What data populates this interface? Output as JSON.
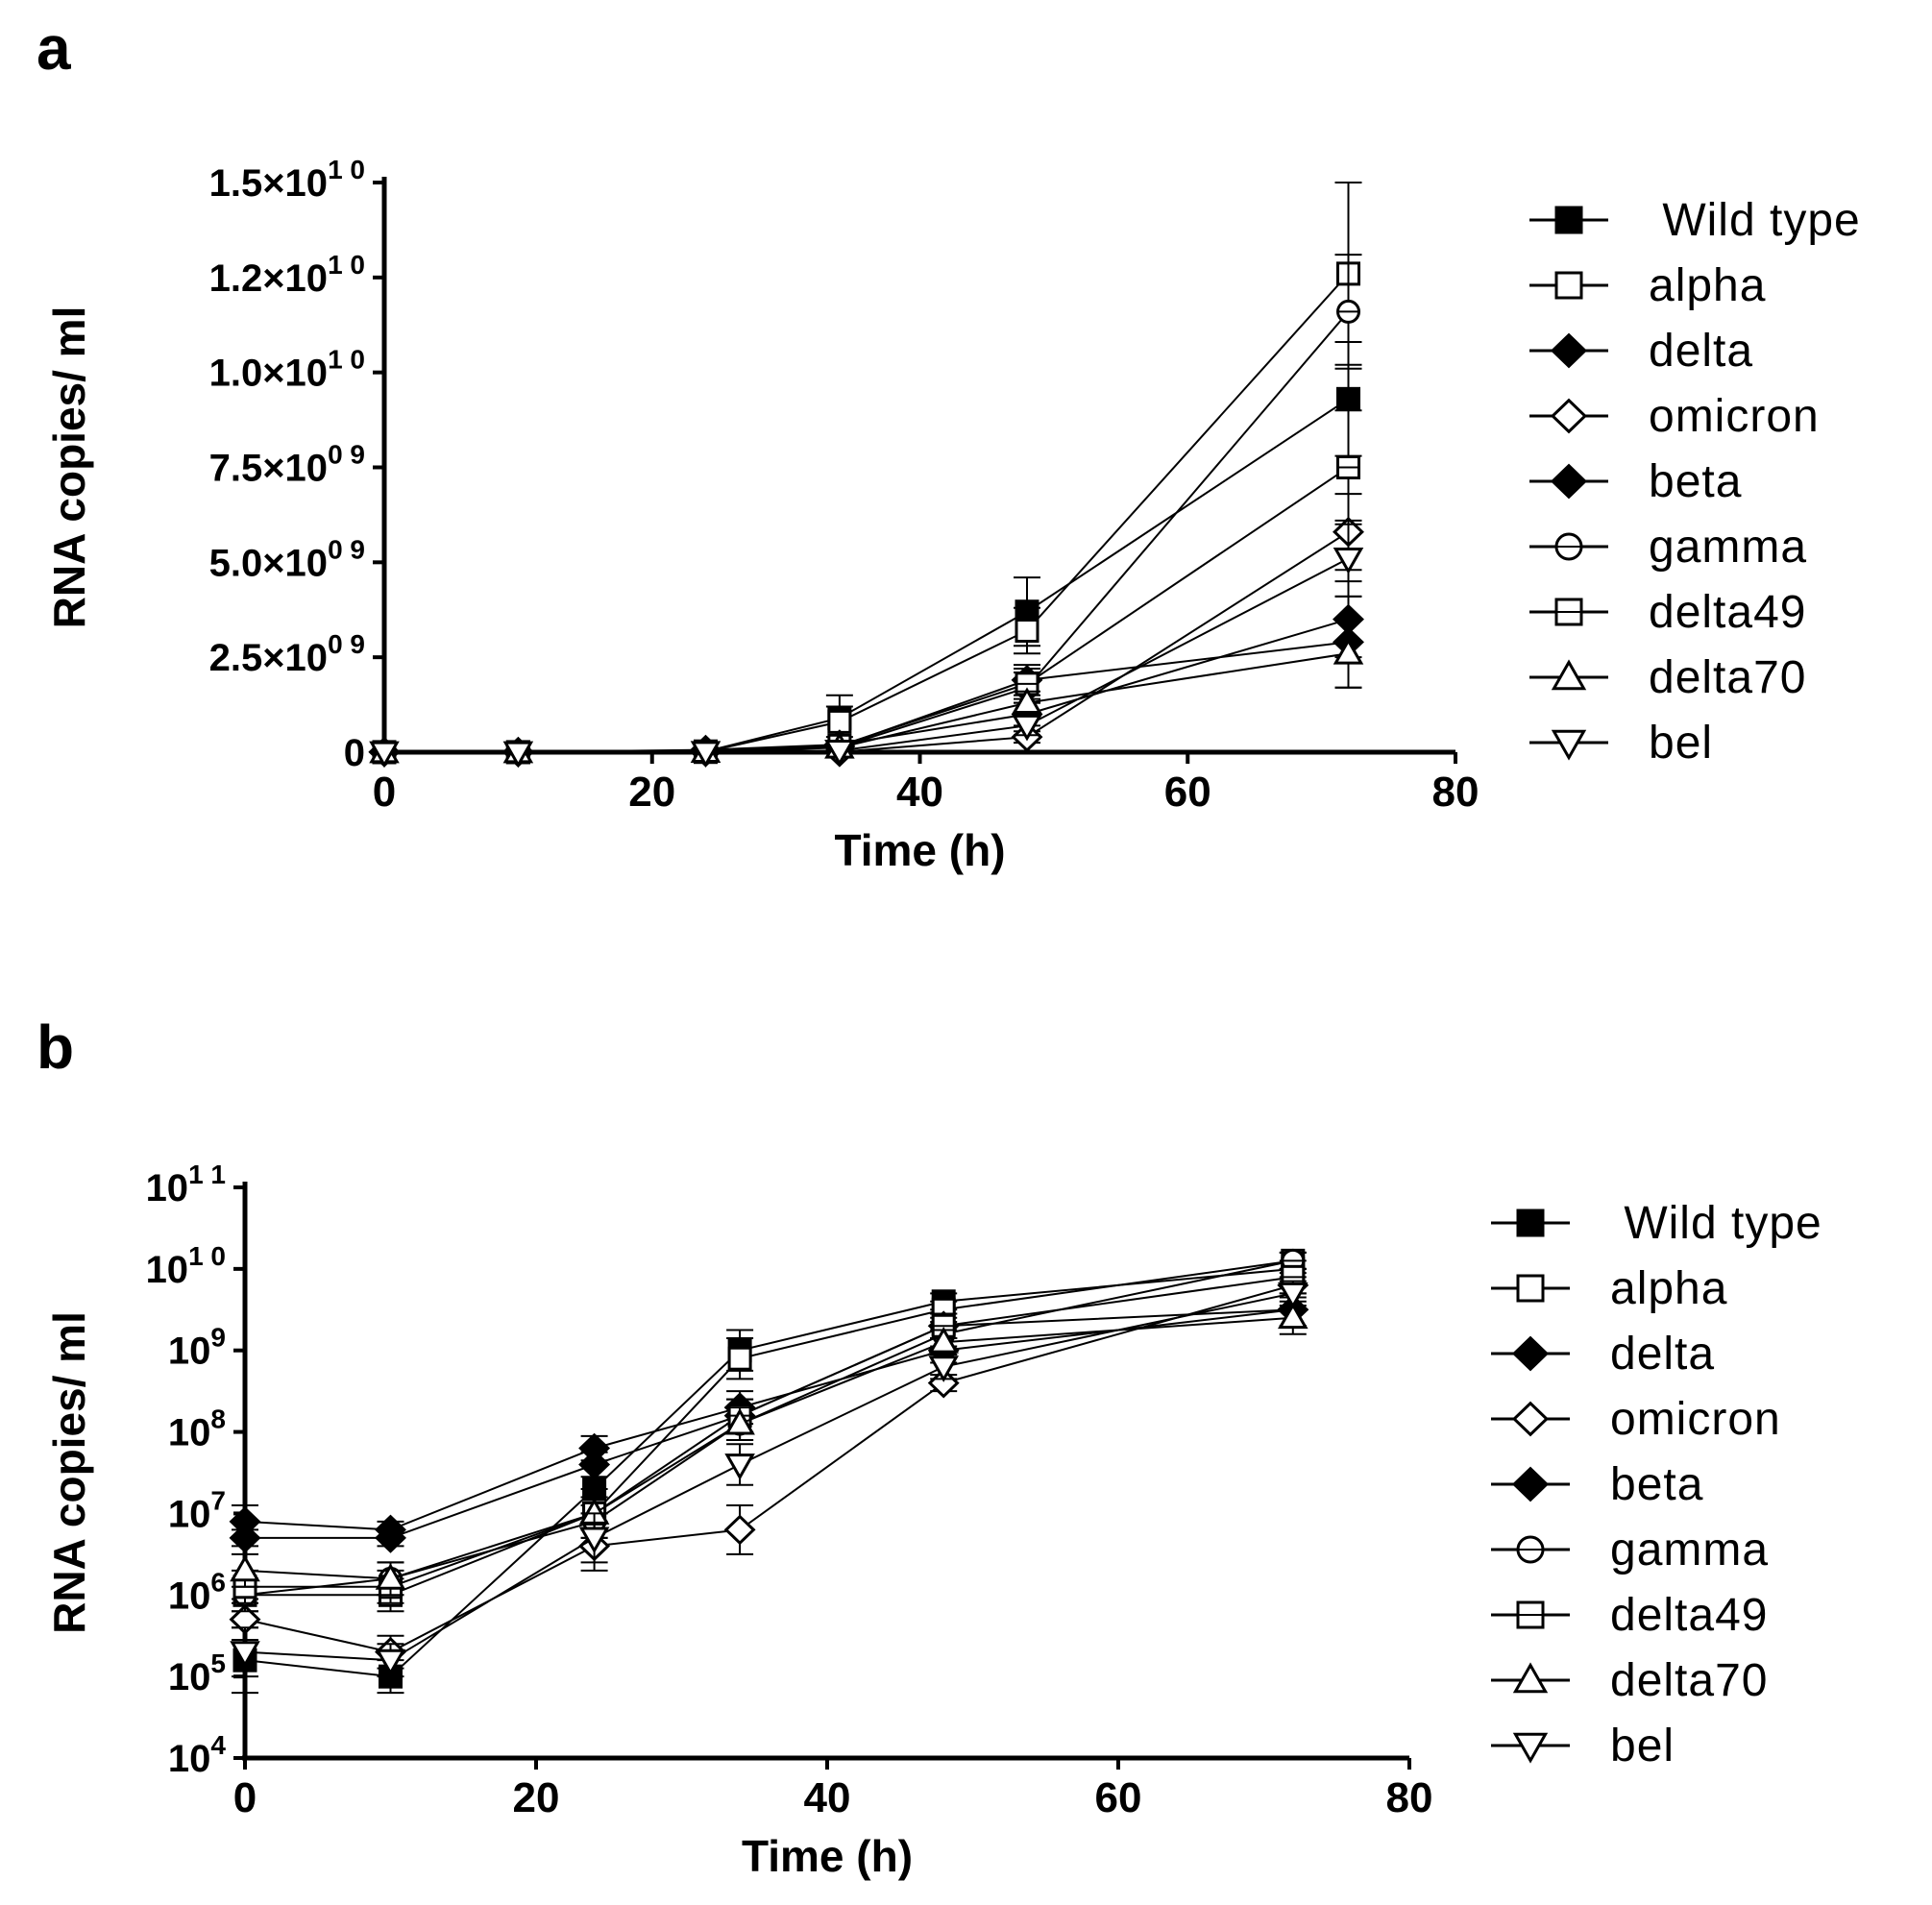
{
  "colors": {
    "ink": "#000000",
    "open_fill": "#ffffff",
    "background": "#ffffff"
  },
  "series_styles": [
    {
      "name": "Wild type",
      "marker": "square",
      "filled": true
    },
    {
      "name": "alpha",
      "marker": "square",
      "filled": false
    },
    {
      "name": "delta",
      "marker": "diamond",
      "filled": true
    },
    {
      "name": "omicron",
      "marker": "diamond",
      "filled": false
    },
    {
      "name": "beta",
      "marker": "diamond",
      "filled": true
    },
    {
      "name": "gamma",
      "marker": "circle-bar",
      "filled": false
    },
    {
      "name": "delta49",
      "marker": "square-bar",
      "filled": false
    },
    {
      "name": "delta70",
      "marker": "triangle-up",
      "filled": false
    },
    {
      "name": "bel",
      "marker": "triangle-down",
      "filled": false
    }
  ],
  "chart_data": [
    {
      "panel": "a",
      "type": "line",
      "scale": "linear",
      "title": "",
      "xlabel": "Time (h)",
      "ylabel": "RNA copies/ ml",
      "xlim": [
        0,
        80
      ],
      "ylim": [
        0,
        15000000000
      ],
      "xticks": [
        0,
        20,
        40,
        60,
        80
      ],
      "yticks": [
        {
          "value": 0,
          "mant": "0",
          "exp": ""
        },
        {
          "value": 2500000000,
          "mant": "2.5×10",
          "exp": "0 9"
        },
        {
          "value": 5000000000,
          "mant": "5.0×10",
          "exp": "0 9"
        },
        {
          "value": 7500000000,
          "mant": "7.5×10",
          "exp": "0 9"
        },
        {
          "value": 10000000000,
          "mant": "1.0×10",
          "exp": "1 0"
        },
        {
          "value": 12500000000,
          "mant": "1.2×10",
          "exp": "1 0"
        },
        {
          "value": 15000000000,
          "mant": "1.5×10",
          "exp": "1 0"
        }
      ],
      "x": [
        0,
        10,
        24,
        34,
        48,
        72
      ],
      "series": [
        {
          "name": "Wild type",
          "values": [
            100000,
            80000,
            20000000,
            900000000,
            3700000000,
            9300000000
          ],
          "errors": [
            0,
            0,
            10000000,
            600000000,
            900000000,
            1500000000
          ]
        },
        {
          "name": "alpha",
          "values": [
            1000000,
            1000000,
            10000000,
            800000000,
            3200000000,
            12600000000
          ],
          "errors": [
            0,
            0,
            5000000,
            400000000,
            600000000,
            2400000000
          ]
        },
        {
          "name": "delta",
          "values": [
            5000000,
            5000000,
            40000000,
            150000000,
            1900000000,
            2900000000
          ],
          "errors": [
            0,
            0,
            20000000,
            80000000,
            400000000,
            1200000000
          ]
        },
        {
          "name": "omicron",
          "values": [
            500000,
            200000,
            5000000,
            6000000,
            400000000,
            5800000000
          ],
          "errors": [
            0,
            0,
            3000000,
            4000000,
            150000000,
            1000000000
          ]
        },
        {
          "name": "beta",
          "values": [
            8000000,
            6000000,
            60000000,
            200000000,
            1000000000,
            3500000000
          ],
          "errors": [
            0,
            0,
            30000000,
            100000000,
            300000000,
            1000000000
          ]
        },
        {
          "name": "gamma",
          "values": [
            1000000,
            1500000,
            8000000,
            130000000,
            1700000000,
            11600000000
          ],
          "errors": [
            0,
            0,
            4000000,
            60000000,
            400000000,
            1500000000
          ]
        },
        {
          "name": "delta49",
          "values": [
            1300000,
            1300000,
            9000000,
            170000000,
            1800000000,
            7500000000
          ],
          "errors": [
            0,
            0,
            4000000,
            80000000,
            400000000,
            1500000000
          ]
        },
        {
          "name": "delta70",
          "values": [
            2000000,
            1500000,
            10000000,
            120000000,
            1300000000,
            2600000000
          ],
          "errors": [
            0,
            0,
            5000000,
            60000000,
            300000000,
            900000000
          ]
        },
        {
          "name": "bel",
          "values": [
            200000,
            150000,
            5000000,
            40000000,
            700000000,
            5100000000
          ],
          "errors": [
            0,
            0,
            3000000,
            20000000,
            250000000,
            1000000000
          ]
        }
      ]
    },
    {
      "panel": "b",
      "type": "line",
      "scale": "log",
      "title": "",
      "xlabel": "Time (h)",
      "ylabel": "RNA copies/ ml",
      "xlim": [
        0,
        80
      ],
      "ylim": [
        4,
        11
      ],
      "xticks": [
        0,
        20,
        40,
        60,
        80
      ],
      "yticks": [
        {
          "value": 4,
          "mant": "10",
          "exp": "4"
        },
        {
          "value": 5,
          "mant": "10",
          "exp": "5"
        },
        {
          "value": 6,
          "mant": "10",
          "exp": "6"
        },
        {
          "value": 7,
          "mant": "10",
          "exp": "7"
        },
        {
          "value": 8,
          "mant": "10",
          "exp": "8"
        },
        {
          "value": 9,
          "mant": "10",
          "exp": "9"
        },
        {
          "value": 10,
          "mant": "10",
          "exp": "1 0"
        },
        {
          "value": 11,
          "mant": "10",
          "exp": "1 1"
        }
      ],
      "x": [
        0,
        10,
        24,
        34,
        48,
        72
      ],
      "series": [
        {
          "name": "Wild type",
          "log10_values": [
            5.2,
            5.0,
            7.3,
            9.0,
            9.6,
            10.0
          ],
          "log10_errors": [
            0.4,
            0.2,
            0.3,
            0.25,
            0.1,
            0.1
          ]
        },
        {
          "name": "alpha",
          "log10_values": [
            6.0,
            6.0,
            7.0,
            8.9,
            9.5,
            10.1
          ],
          "log10_errors": [
            0.2,
            0.2,
            0.3,
            0.25,
            0.1,
            0.1
          ]
        },
        {
          "name": "delta",
          "log10_values": [
            6.7,
            6.7,
            7.6,
            8.2,
            9.3,
            9.5
          ],
          "log10_errors": [
            0.1,
            0.1,
            0.15,
            0.2,
            0.15,
            0.2
          ]
        },
        {
          "name": "omicron",
          "log10_values": [
            5.7,
            5.3,
            6.6,
            6.8,
            8.6,
            9.8
          ],
          "log10_errors": [
            0.25,
            0.2,
            0.3,
            0.3,
            0.1,
            0.15
          ]
        },
        {
          "name": "beta",
          "log10_values": [
            6.9,
            6.8,
            7.8,
            8.3,
            9.0,
            9.5
          ],
          "log10_errors": [
            0.2,
            0.1,
            0.15,
            0.2,
            0.15,
            0.2
          ]
        },
        {
          "name": "gamma",
          "log10_values": [
            6.0,
            6.2,
            6.9,
            8.1,
            9.2,
            10.1
          ],
          "log10_errors": [
            0.2,
            0.2,
            0.2,
            0.2,
            0.15,
            0.1
          ]
        },
        {
          "name": "delta49",
          "log10_values": [
            6.1,
            6.1,
            7.0,
            8.2,
            9.3,
            9.9
          ],
          "log10_errors": [
            0.2,
            0.2,
            0.2,
            0.2,
            0.15,
            0.1
          ]
        },
        {
          "name": "delta70",
          "log10_values": [
            6.3,
            6.2,
            7.0,
            8.1,
            9.1,
            9.4
          ],
          "log10_errors": [
            0.2,
            0.2,
            0.2,
            0.2,
            0.15,
            0.2
          ]
        },
        {
          "name": "bel",
          "log10_values": [
            5.3,
            5.2,
            6.7,
            7.6,
            8.8,
            9.7
          ],
          "log10_errors": [
            0.3,
            0.2,
            0.3,
            0.25,
            0.15,
            0.15
          ]
        }
      ]
    }
  ]
}
